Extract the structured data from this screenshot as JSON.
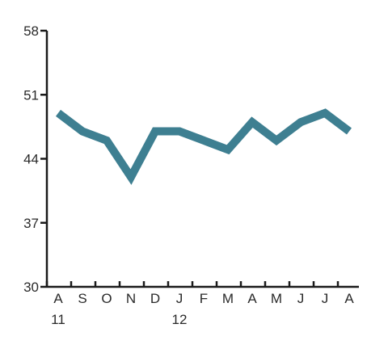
{
  "chart_data": {
    "type": "line",
    "title": "",
    "xlabel": "",
    "ylabel": "",
    "categories": [
      "A",
      "S",
      "O",
      "N",
      "D",
      "J",
      "F",
      "M",
      "A",
      "M",
      "J",
      "J",
      "A"
    ],
    "year_labels": [
      {
        "index": 0,
        "label": "11"
      },
      {
        "index": 5,
        "label": "12"
      }
    ],
    "yticks": [
      30,
      37,
      44,
      51,
      58
    ],
    "ylim": [
      30,
      58
    ],
    "grid": false,
    "legend": "none",
    "series": [
      {
        "values": [
          49,
          47,
          46,
          42,
          47,
          47,
          46,
          45,
          48,
          46,
          48,
          49,
          47
        ],
        "color": "#3e7f91"
      }
    ],
    "axis_color": "#1a1a1a"
  }
}
